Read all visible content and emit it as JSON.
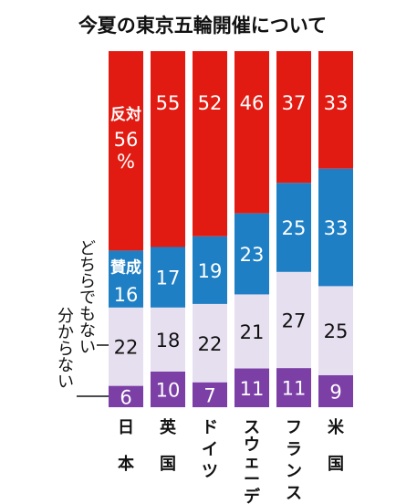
{
  "chart_data": {
    "type": "bar",
    "stacked": true,
    "title": "今夏の東京五輪開催について",
    "categories": [
      "日本",
      "英国",
      "ドイツ",
      "スウェーデン",
      "フランス",
      "米国"
    ],
    "series": [
      {
        "name": "分からない",
        "values": [
          6,
          10,
          7,
          11,
          11,
          9
        ],
        "color": "#7b3fa6",
        "text_color": "#ffffff"
      },
      {
        "name": "どちらでもない",
        "values": [
          22,
          18,
          22,
          21,
          27,
          25
        ],
        "color": "#e6dff0",
        "text_color": "#111111"
      },
      {
        "name": "賛成",
        "values": [
          16,
          17,
          19,
          23,
          25,
          33
        ],
        "color": "#1f7fc4",
        "text_color": "#ffffff"
      },
      {
        "name": "反対",
        "values": [
          56,
          55,
          52,
          46,
          37,
          33
        ],
        "color": "#e21b12",
        "text_color": "#ffffff"
      }
    ],
    "percent_sign": "%",
    "ylim": [
      0,
      100
    ]
  }
}
